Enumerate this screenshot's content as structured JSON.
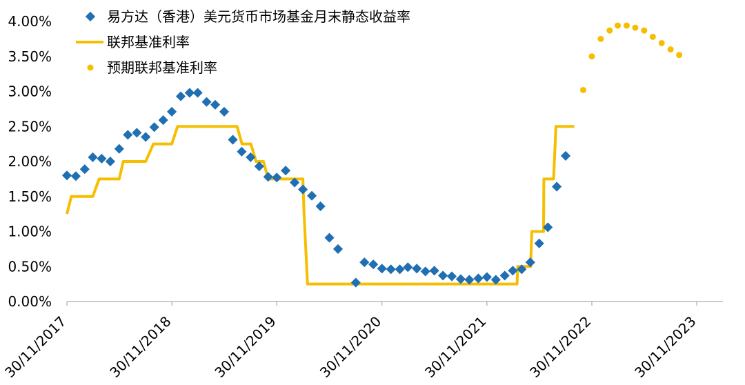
{
  "chart_data": {
    "type": "line",
    "x_tick_labels": [
      "30/11/2017",
      "30/11/2018",
      "30/11/2019",
      "30/11/2020",
      "30/11/2021",
      "30/11/2022",
      "30/11/2023"
    ],
    "y_tick_labels": [
      "0.00%",
      "0.50%",
      "1.00%",
      "1.50%",
      "2.00%",
      "2.50%",
      "3.00%",
      "3.50%",
      "4.00%"
    ],
    "ylim": [
      0,
      4.0
    ],
    "x_start": "2017-11-30",
    "x_end": "2024-02-29",
    "grid": false,
    "legend_position": "top-left",
    "colors": {
      "fund": "#1F6FB2",
      "fed": "#F6BE00"
    },
    "series": [
      {
        "name": "易方达（香港）美元货币市场基金月末静态收益率",
        "style": "diamond-markers",
        "points": [
          [
            "2017-11-30",
            1.8
          ],
          [
            "2017-12-31",
            1.79
          ],
          [
            "2018-01-31",
            1.89
          ],
          [
            "2018-02-28",
            2.06
          ],
          [
            "2018-03-31",
            2.04
          ],
          [
            "2018-04-30",
            2.0
          ],
          [
            "2018-05-31",
            2.18
          ],
          [
            "2018-06-30",
            2.38
          ],
          [
            "2018-07-31",
            2.41
          ],
          [
            "2018-08-31",
            2.35
          ],
          [
            "2018-09-30",
            2.49
          ],
          [
            "2018-10-31",
            2.59
          ],
          [
            "2018-11-30",
            2.71
          ],
          [
            "2018-12-31",
            2.93
          ],
          [
            "2019-01-31",
            2.98
          ],
          [
            "2019-02-28",
            2.98
          ],
          [
            "2019-03-31",
            2.85
          ],
          [
            "2019-04-30",
            2.81
          ],
          [
            "2019-05-31",
            2.71
          ],
          [
            "2019-06-30",
            2.31
          ],
          [
            "2019-07-31",
            2.14
          ],
          [
            "2019-08-31",
            2.06
          ],
          [
            "2019-09-30",
            1.93
          ],
          [
            "2019-10-31",
            1.78
          ],
          [
            "2019-11-30",
            1.77
          ],
          [
            "2019-12-31",
            1.87
          ],
          [
            "2020-01-31",
            1.7
          ],
          [
            "2020-02-29",
            1.6
          ],
          [
            "2020-03-31",
            1.51
          ],
          [
            "2020-04-30",
            1.36
          ],
          [
            "2020-05-31",
            0.91
          ],
          [
            "2020-06-30",
            0.75
          ],
          [
            "2020-08-31",
            0.27
          ],
          [
            "2020-09-30",
            0.56
          ],
          [
            "2020-10-31",
            0.53
          ],
          [
            "2020-11-30",
            0.47
          ],
          [
            "2020-12-31",
            0.46
          ],
          [
            "2021-01-31",
            0.46
          ],
          [
            "2021-02-28",
            0.49
          ],
          [
            "2021-03-31",
            0.47
          ],
          [
            "2021-04-30",
            0.43
          ],
          [
            "2021-05-31",
            0.44
          ],
          [
            "2021-06-30",
            0.37
          ],
          [
            "2021-07-31",
            0.36
          ],
          [
            "2021-08-31",
            0.32
          ],
          [
            "2021-09-30",
            0.31
          ],
          [
            "2021-10-31",
            0.33
          ],
          [
            "2021-11-30",
            0.35
          ],
          [
            "2021-12-31",
            0.31
          ],
          [
            "2022-01-31",
            0.37
          ],
          [
            "2022-02-28",
            0.44
          ],
          [
            "2022-03-31",
            0.46
          ],
          [
            "2022-04-30",
            0.56
          ],
          [
            "2022-05-31",
            0.83
          ],
          [
            "2022-06-30",
            1.06
          ],
          [
            "2022-07-31",
            1.64
          ],
          [
            "2022-08-31",
            2.08
          ]
        ]
      },
      {
        "name": "联邦基准利率",
        "style": "line",
        "points": [
          [
            "2017-11-30",
            1.25
          ],
          [
            "2017-12-15",
            1.5
          ],
          [
            "2018-02-28",
            1.5
          ],
          [
            "2018-03-22",
            1.75
          ],
          [
            "2018-05-31",
            1.75
          ],
          [
            "2018-06-14",
            2.0
          ],
          [
            "2018-08-31",
            2.0
          ],
          [
            "2018-09-27",
            2.25
          ],
          [
            "2018-11-30",
            2.25
          ],
          [
            "2018-12-20",
            2.5
          ],
          [
            "2019-07-15",
            2.5
          ],
          [
            "2019-08-01",
            2.25
          ],
          [
            "2019-09-01",
            2.25
          ],
          [
            "2019-09-19",
            2.0
          ],
          [
            "2019-10-15",
            2.0
          ],
          [
            "2019-10-31",
            1.75
          ],
          [
            "2020-02-29",
            1.75
          ],
          [
            "2020-03-04",
            1.25
          ],
          [
            "2020-03-16",
            0.25
          ],
          [
            "2022-03-15",
            0.25
          ],
          [
            "2022-03-17",
            0.5
          ],
          [
            "2022-05-01",
            0.5
          ],
          [
            "2022-05-05",
            1.0
          ],
          [
            "2022-06-15",
            1.0
          ],
          [
            "2022-06-16",
            1.75
          ],
          [
            "2022-07-20",
            1.75
          ],
          [
            "2022-07-28",
            2.5
          ],
          [
            "2022-09-30",
            2.5
          ]
        ]
      },
      {
        "name": "预期联邦基准利率",
        "style": "dot-markers",
        "points": [
          [
            "2022-10-31",
            3.02
          ],
          [
            "2022-11-30",
            3.5
          ],
          [
            "2022-12-31",
            3.75
          ],
          [
            "2023-01-31",
            3.87
          ],
          [
            "2023-02-28",
            3.94
          ],
          [
            "2023-03-31",
            3.94
          ],
          [
            "2023-04-30",
            3.91
          ],
          [
            "2023-05-31",
            3.87
          ],
          [
            "2023-06-30",
            3.78
          ],
          [
            "2023-07-31",
            3.69
          ],
          [
            "2023-08-31",
            3.6
          ],
          [
            "2023-09-30",
            3.52
          ]
        ]
      }
    ]
  }
}
